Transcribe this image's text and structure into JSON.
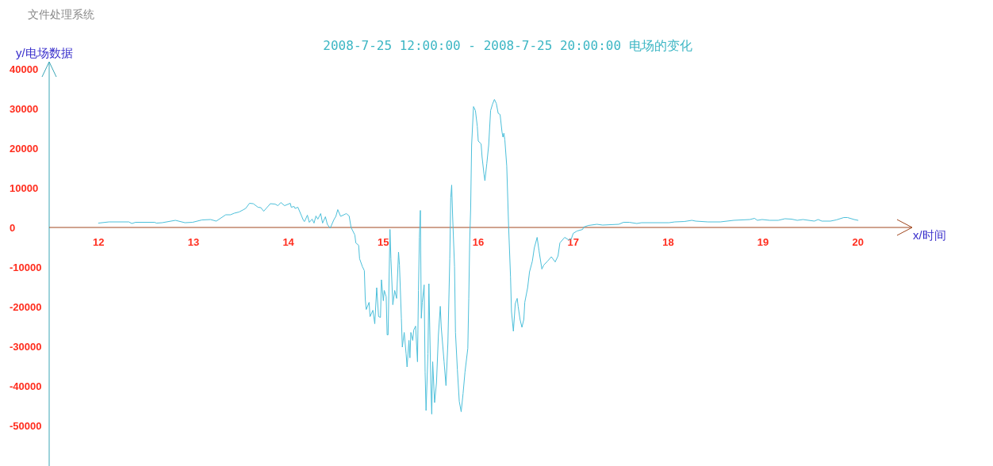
{
  "chart_data": {
    "type": "line",
    "title": "2008-7-25 12:00:00 - 2008-7-25 20:00:00 电场的变化",
    "xlabel": "x/时间",
    "ylabel": "y/电场数据",
    "annotations": [
      "文件处理系统"
    ],
    "x": [
      12.0,
      12.11,
      12.32,
      12.35,
      12.39,
      12.59,
      12.61,
      12.67,
      12.81,
      12.91,
      12.99,
      13.09,
      13.18,
      13.24,
      13.34,
      13.39,
      13.43,
      13.48,
      13.52,
      13.55,
      13.59,
      13.63,
      13.68,
      13.71,
      13.74,
      13.81,
      13.86,
      13.89,
      13.92,
      13.96,
      14.02,
      14.03,
      14.06,
      14.07,
      14.1,
      14.16,
      14.17,
      14.2,
      14.22,
      14.25,
      14.27,
      14.29,
      14.31,
      14.34,
      14.36,
      14.39,
      14.41,
      14.44,
      14.48,
      14.5,
      14.52,
      14.55,
      14.61,
      14.64,
      14.66,
      14.7,
      14.71,
      14.74,
      14.75,
      14.78,
      14.8,
      14.81,
      14.82,
      14.85,
      14.86,
      14.89,
      14.91,
      14.93,
      14.95,
      14.97,
      14.98,
      15.0,
      15.01,
      15.03,
      15.04,
      15.05,
      15.07,
      15.08,
      15.1,
      15.12,
      15.14,
      15.16,
      15.17,
      15.19,
      15.2,
      15.22,
      15.24,
      15.25,
      15.27,
      15.28,
      15.29,
      15.31,
      15.32,
      15.34,
      15.36,
      15.37,
      15.38,
      15.39,
      15.4,
      15.41,
      15.43,
      15.44,
      15.45,
      15.47,
      15.48,
      15.5,
      15.51,
      15.52,
      15.54,
      15.56,
      15.58,
      15.6,
      15.61,
      15.64,
      15.66,
      15.68,
      15.7,
      15.71,
      15.72,
      15.73,
      15.75,
      15.76,
      15.78,
      15.8,
      15.82,
      15.84,
      15.86,
      15.89,
      15.9,
      15.91,
      15.92,
      15.93,
      15.95,
      15.97,
      15.99,
      16.0,
      16.03,
      16.04,
      16.06,
      16.07,
      16.09,
      16.11,
      16.13,
      16.15,
      16.17,
      16.19,
      16.21,
      16.23,
      16.25,
      16.26,
      16.27,
      16.28,
      16.3,
      16.32,
      16.34,
      16.35,
      16.37,
      16.39,
      16.41,
      16.42,
      16.44,
      16.46,
      16.48,
      16.49,
      16.52,
      16.54,
      16.57,
      16.59,
      16.62,
      16.64,
      16.67,
      16.69,
      16.73,
      16.77,
      16.81,
      16.84,
      16.86,
      16.91,
      16.95,
      16.98,
      17.0,
      17.04,
      17.1,
      17.11,
      17.16,
      17.25,
      17.31,
      17.48,
      17.53,
      17.59,
      17.67,
      17.72,
      18.01,
      18.07,
      18.17,
      18.25,
      18.29,
      18.42,
      18.55,
      18.69,
      18.86,
      18.91,
      18.94,
      18.99,
      19.07,
      19.16,
      19.23,
      19.3,
      19.36,
      19.42,
      19.54,
      19.58,
      19.62,
      19.71,
      19.77,
      19.85,
      19.89,
      19.96,
      20.0
    ],
    "series": [
      {
        "color": "#4cbfda",
        "values": [
          1100,
          1400,
          1400,
          1000,
          1300,
          1300,
          1100,
          1200,
          1800,
          1200,
          1300,
          1900,
          2000,
          1600,
          3200,
          3200,
          3600,
          3900,
          4400,
          4800,
          6100,
          6000,
          5100,
          5000,
          4100,
          6000,
          5900,
          5500,
          6300,
          5500,
          6100,
          5100,
          5300,
          4800,
          5100,
          1700,
          1500,
          3100,
          1300,
          2100,
          1100,
          2900,
          2100,
          3500,
          1100,
          2700,
          800,
          -200,
          2000,
          2800,
          4500,
          2800,
          3500,
          2900,
          0,
          -1900,
          -3900,
          -4500,
          -7900,
          -9900,
          -10900,
          -18200,
          -20700,
          -18900,
          -22500,
          -20900,
          -24300,
          -15200,
          -22500,
          -22700,
          -13200,
          -18500,
          -15900,
          -17500,
          -27100,
          -27100,
          -500,
          -7900,
          -19500,
          -15900,
          -17900,
          -6200,
          -9500,
          -22900,
          -30200,
          -26500,
          -31900,
          -35200,
          -28500,
          -32900,
          -26500,
          -28500,
          -25900,
          -24900,
          -33900,
          -15900,
          -2500,
          4300,
          -22900,
          -18900,
          -14500,
          -36500,
          -46200,
          -31900,
          -14200,
          -39200,
          -47100,
          -33900,
          -44200,
          -39200,
          -27200,
          -19900,
          -25200,
          -33900,
          -39900,
          -29200,
          -7900,
          7500,
          10700,
          2800,
          -9900,
          -26500,
          -35900,
          -43900,
          -46500,
          -41900,
          -36500,
          -30500,
          -17900,
          -3200,
          4800,
          20800,
          30500,
          29500,
          25500,
          21800,
          21100,
          17800,
          13500,
          11800,
          16100,
          20800,
          29500,
          31100,
          32300,
          31300,
          28800,
          28500,
          24100,
          22800,
          23800,
          22100,
          15500,
          100,
          -12500,
          -21200,
          -26200,
          -19200,
          -17900,
          -19900,
          -23200,
          -25200,
          -23200,
          -18900,
          -15200,
          -11200,
          -8500,
          -5200,
          -2500,
          -5900,
          -10500,
          -9500,
          -8500,
          -7400,
          -8700,
          -7200,
          -3900,
          -2500,
          -3100,
          -2900,
          -1500,
          -900,
          -500,
          100,
          500,
          800,
          600,
          800,
          1300,
          1300,
          1000,
          1200,
          1200,
          1400,
          1500,
          1800,
          1600,
          1400,
          1400,
          1800,
          2000,
          2300,
          1800,
          2000,
          1800,
          1800,
          2200,
          2100,
          1800,
          2000,
          1600,
          2000,
          1600,
          1600,
          1900,
          2500,
          2500,
          2000,
          1800
        ]
      }
    ],
    "xlim": [
      11.48,
      20.57
    ],
    "ylim": [
      -60200,
      41400
    ],
    "xticks": [
      12,
      13,
      14,
      15,
      16,
      17,
      18,
      19,
      20
    ],
    "yticks": [
      -50000,
      -40000,
      -30000,
      -20000,
      -10000,
      0,
      10000,
      20000,
      30000,
      40000
    ]
  }
}
